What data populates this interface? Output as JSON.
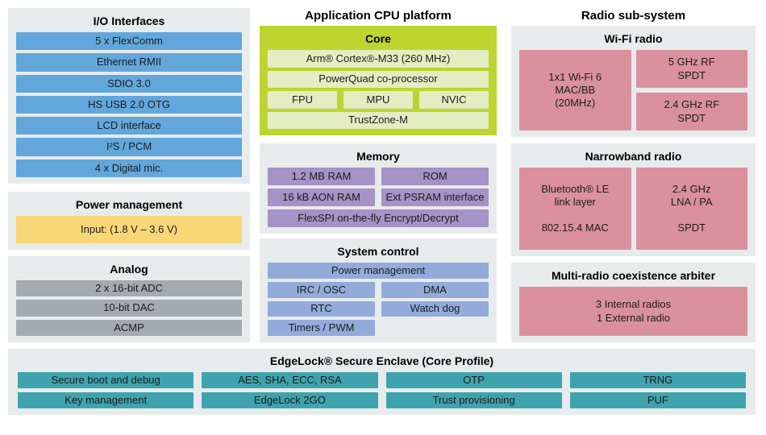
{
  "colors": {
    "panel_bg": "#e7ebec",
    "io_block": "#62a7db",
    "power_block": "#fad776",
    "analog_block": "#a4aaaf",
    "core_panel": "#bed431",
    "core_block": "#e4ecc1",
    "memory_block": "#a592c6",
    "system_block": "#92abdb",
    "radio_block": "#da919d",
    "secure_block": "#3fa3ae"
  },
  "left": {
    "io": {
      "title": "I/O Interfaces",
      "items": [
        "5 x FlexComm",
        "Ethernet RMII",
        "SDIO 3.0",
        "HS USB 2.0 OTG",
        "LCD interface",
        "I²S / PCM",
        "4 x Digital mic."
      ]
    },
    "power": {
      "title": "Power management",
      "input": "Input: (1.8 V – 3.6 V)"
    },
    "analog": {
      "title": "Analog",
      "items": [
        "2 x 16-bit ADC",
        "10-bit DAC",
        "ACMP"
      ]
    }
  },
  "cpu": {
    "title": "Application CPU platform",
    "core": {
      "title": "Core",
      "row1": "Arm® Cortex®-M33 (260 MHz)",
      "row2": "PowerQuad co-processor",
      "row3": [
        "FPU",
        "MPU",
        "NVIC"
      ],
      "row4": "TrustZone-M"
    },
    "memory": {
      "title": "Memory",
      "row1": [
        "1.2 MB RAM",
        "ROM"
      ],
      "row2": [
        "16 kB AON RAM",
        "Ext PSRAM interface"
      ],
      "row3": "FlexSPI  on-the-fly Encrypt/Decrypt"
    },
    "system": {
      "title": "System control",
      "row1": "Power management",
      "row2": [
        "IRC / OSC",
        "DMA"
      ],
      "row3": [
        "RTC",
        "Watch dog"
      ],
      "row4": "Timers / PWM"
    }
  },
  "radio": {
    "title": "Radio sub-system",
    "wifi": {
      "title": "Wi-Fi radio",
      "mac": "1x1 Wi-Fi 6\nMAC/BB\n(20MHz)",
      "spdt5": "5 GHz RF\nSPDT",
      "spdt24": "2.4 GHz RF\nSPDT"
    },
    "narrowband": {
      "title": "Narrowband radio",
      "left": "Bluetooth® LE\nlink layer\n\n802.15.4 MAC",
      "right": "2.4 GHz\nLNA / PA\n\nSPDT"
    },
    "coex": {
      "title": "Multi-radio coexistence arbiter",
      "block": "3 Internal radios\n1 External radio"
    }
  },
  "secure": {
    "title": "EdgeLock® Secure Enclave (Core Profile)",
    "row1": [
      "Secure boot and debug",
      "AES, SHA, ECC, RSA",
      "OTP",
      "TRNG"
    ],
    "row2": [
      "Key management",
      "EdgeLock 2GO",
      "Trust provisioning",
      "PUF"
    ]
  }
}
